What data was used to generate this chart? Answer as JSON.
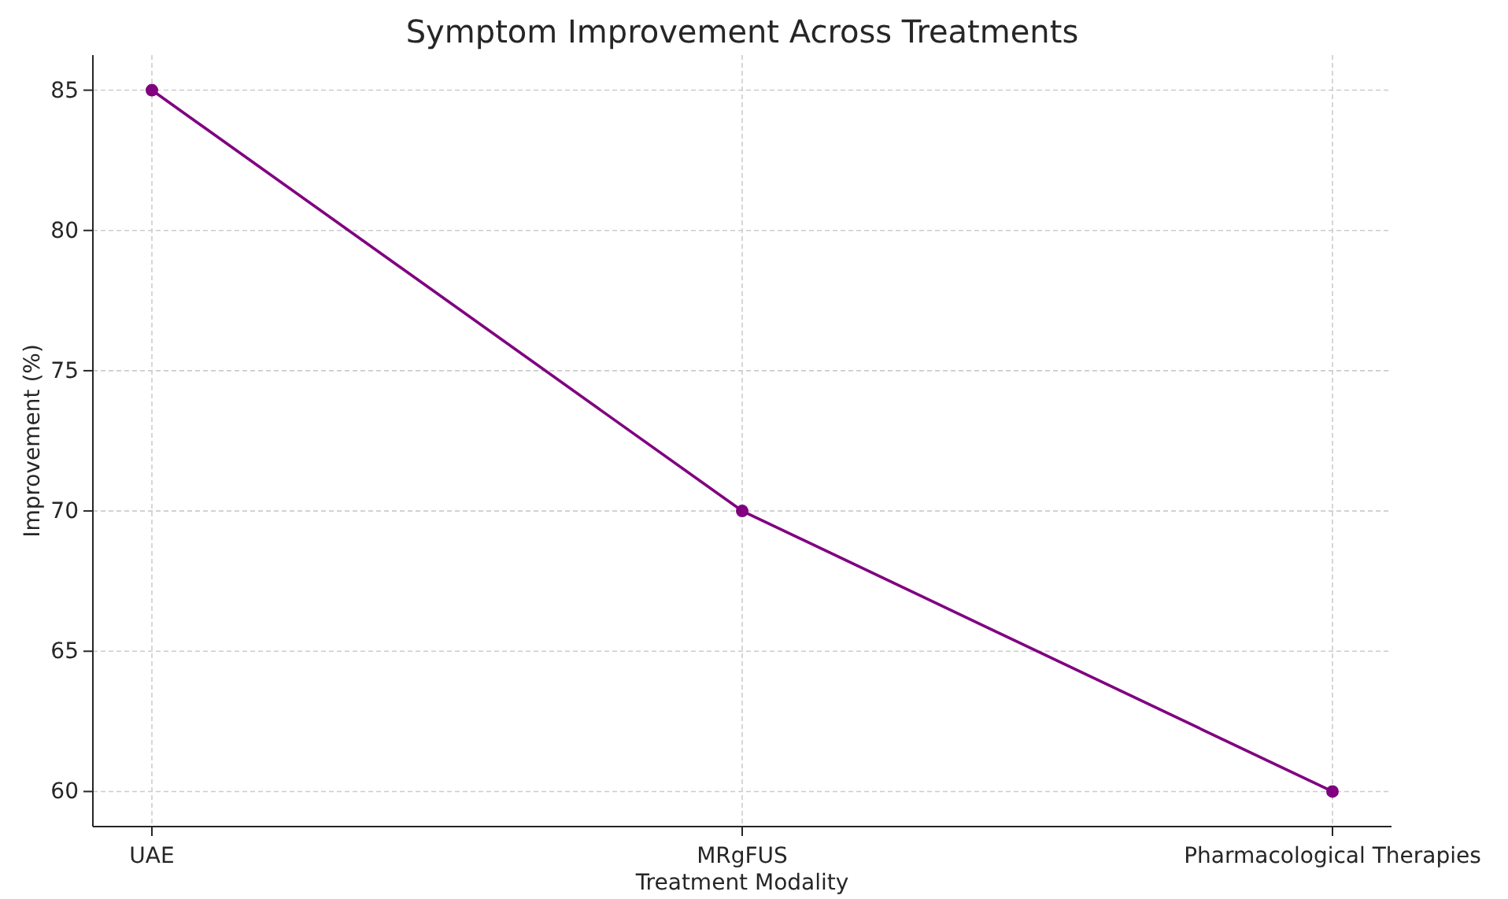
{
  "chart_data": {
    "type": "line",
    "title": "Symptom Improvement Across Treatments",
    "xlabel": "Treatment Modality",
    "ylabel": "Improvement (%)",
    "categories": [
      "UAE",
      "MRgFUS",
      "Pharmacological Therapies"
    ],
    "series": [
      {
        "color": "#800080",
        "values": [
          85,
          70,
          60
        ]
      }
    ],
    "ylim": [
      58.75,
      86.25
    ],
    "yticks": [
      60,
      65,
      70,
      75,
      80,
      85
    ],
    "grid": true,
    "marker": "circle",
    "line_style": "solid"
  }
}
